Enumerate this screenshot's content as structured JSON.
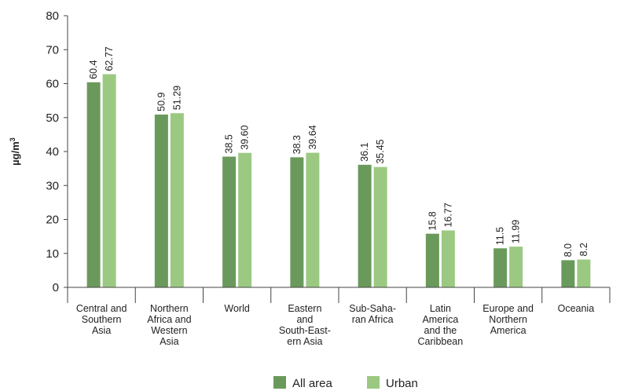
{
  "chart_data": {
    "type": "bar",
    "ylabel_base": "µg/m",
    "ylabel_sup": "3",
    "ylim": [
      0,
      80
    ],
    "yticks": [
      "0",
      "10",
      "20",
      "30",
      "40",
      "50",
      "60",
      "70",
      "80"
    ],
    "categories": [
      [
        "Central and",
        "Southern",
        "Asia"
      ],
      [
        "Northern",
        "Africa and",
        "Western",
        "Asia"
      ],
      [
        "World"
      ],
      [
        "Eastern",
        "and",
        "South-East-",
        "ern Asia"
      ],
      [
        "Sub-Saha-",
        "ran Africa"
      ],
      [
        "Latin",
        "America",
        "and the",
        "Caribbean"
      ],
      [
        "Europe and",
        "Northern",
        "America"
      ],
      [
        "Oceania"
      ]
    ],
    "series": [
      {
        "name": "All area",
        "color": "#6a9a5b",
        "values": [
          60.4,
          50.9,
          38.5,
          38.3,
          36.1,
          15.8,
          11.5,
          8.0
        ],
        "labels": [
          "60.4",
          "50.9",
          "38.5",
          "38.3",
          "36.1",
          "15.8",
          "11.5",
          "8.0"
        ]
      },
      {
        "name": "Urban",
        "color": "#9cc982",
        "values": [
          62.77,
          51.29,
          39.6,
          39.64,
          35.45,
          16.77,
          11.99,
          8.2
        ],
        "labels": [
          "62.77",
          "51.29",
          "39.60",
          "39.64",
          "35.45",
          "16.77",
          "11.99",
          "8.2"
        ]
      }
    ],
    "grid": false,
    "legend_position": "bottom-center"
  }
}
